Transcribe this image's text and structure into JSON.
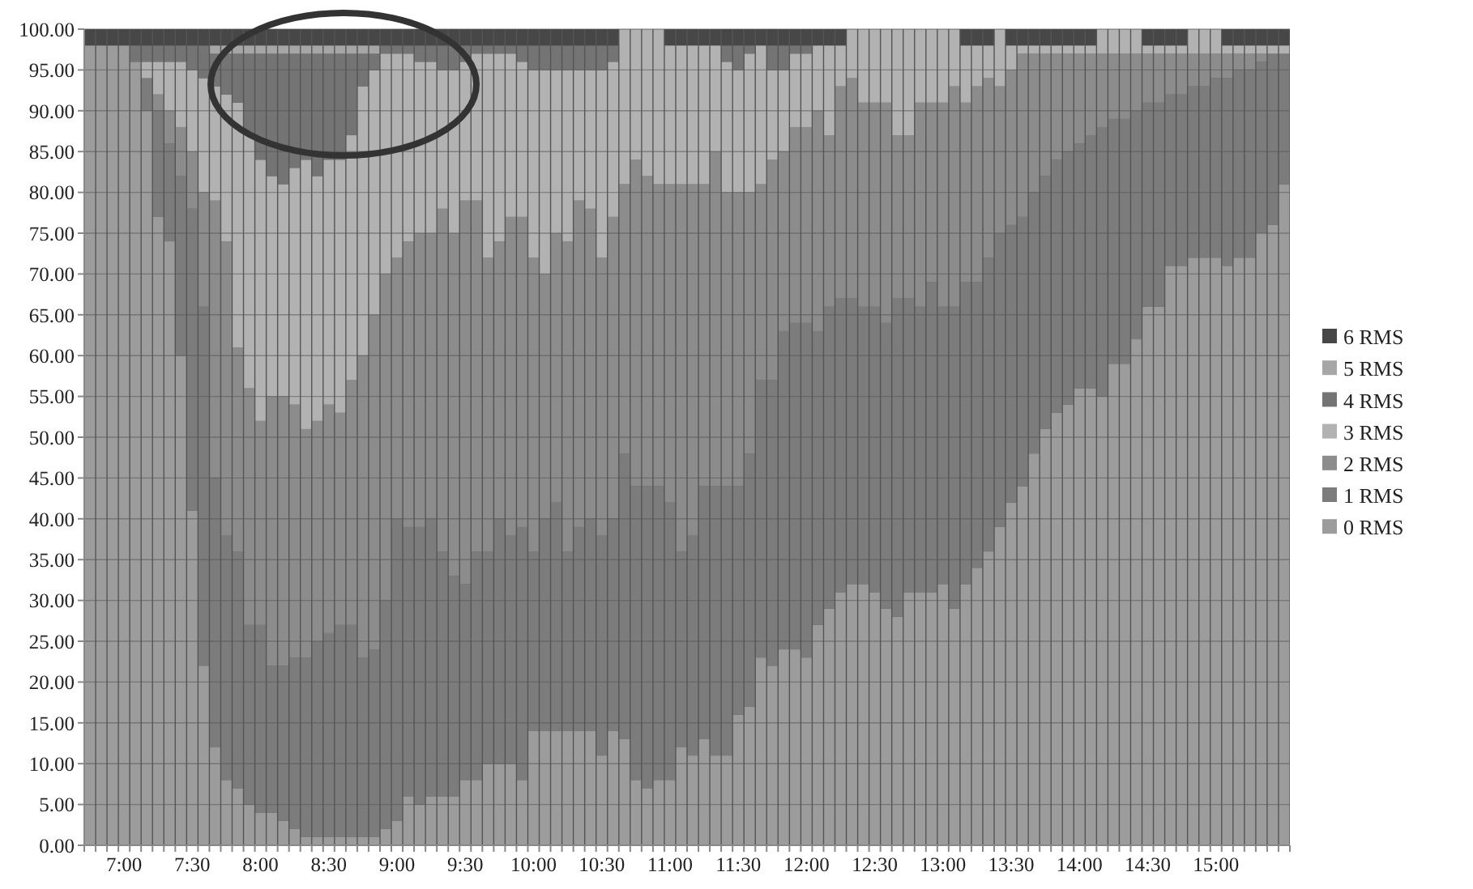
{
  "chart_data": {
    "type": "bar",
    "stacked": true,
    "grid": "y",
    "legend": "right",
    "categories": [
      null,
      null,
      null,
      "7:00",
      null,
      null,
      null,
      null,
      null,
      "7:30",
      null,
      null,
      null,
      null,
      null,
      "8:00",
      null,
      null,
      null,
      null,
      null,
      "8:30",
      null,
      null,
      null,
      null,
      null,
      "9:00",
      null,
      null,
      null,
      null,
      null,
      "9:30",
      null,
      null,
      null,
      null,
      null,
      "10:00",
      null,
      null,
      null,
      null,
      null,
      "10:30",
      null,
      null,
      null,
      null,
      null,
      "11:00",
      null,
      null,
      null,
      null,
      null,
      "11:30",
      null,
      null,
      null,
      null,
      null,
      "12:00",
      null,
      null,
      null,
      null,
      null,
      "12:30",
      null,
      null,
      null,
      null,
      null,
      "13:00",
      null,
      null,
      null,
      null,
      null,
      "13:30",
      null,
      null,
      null,
      null,
      null,
      "14:00",
      null,
      null,
      null,
      null,
      null,
      "14:30",
      null,
      null,
      null,
      null,
      null,
      "15:00",
      null,
      null,
      null,
      null,
      null,
      null
    ],
    "ylim": [
      0,
      100
    ],
    "yticks": [
      {
        "value": 0,
        "label": "0.00"
      },
      {
        "value": 5,
        "label": "5.00"
      },
      {
        "value": 10,
        "label": "10.00"
      },
      {
        "value": 15,
        "label": "15.00"
      },
      {
        "value": 20,
        "label": "20.00"
      },
      {
        "value": 25,
        "label": "25.00"
      },
      {
        "value": 30,
        "label": "30.00"
      },
      {
        "value": 35,
        "label": "35.00"
      },
      {
        "value": 40,
        "label": "40.00"
      },
      {
        "value": 45,
        "label": "45.00"
      },
      {
        "value": 50,
        "label": "50.00"
      },
      {
        "value": 55,
        "label": "55.00"
      },
      {
        "value": 60,
        "label": "60.00"
      },
      {
        "value": 65,
        "label": "65.00"
      },
      {
        "value": 70,
        "label": "70.00"
      },
      {
        "value": 75,
        "label": "75.00"
      },
      {
        "value": 80,
        "label": "80.00"
      },
      {
        "value": 85,
        "label": "85.00"
      },
      {
        "value": 90,
        "label": "90.00"
      },
      {
        "value": 95,
        "label": "95.00"
      },
      {
        "value": 100,
        "label": "100.00"
      }
    ],
    "series": [
      {
        "name": "0 RMS",
        "color": "#9c9c9c",
        "values": [
          98,
          98,
          98,
          98,
          96,
          90,
          77,
          74,
          60,
          41,
          22,
          12,
          8,
          7,
          5,
          4,
          4,
          3,
          2,
          1,
          1,
          1,
          1,
          1,
          1,
          1,
          2,
          3,
          6,
          5,
          6,
          6,
          6,
          8,
          8,
          10,
          10,
          10,
          8,
          14,
          14,
          14,
          14,
          14,
          14,
          11,
          14,
          13,
          8,
          7,
          8,
          8,
          12,
          11,
          13,
          11,
          11,
          16,
          17,
          23,
          22,
          24,
          24,
          23,
          27,
          29,
          31,
          32,
          32,
          31,
          29,
          28,
          31,
          31,
          31,
          32,
          29,
          32,
          34,
          36,
          39,
          42,
          44,
          48,
          51,
          53,
          54,
          56,
          56,
          55,
          59,
          59,
          62,
          66,
          66,
          71,
          71,
          72,
          72,
          72,
          71,
          72,
          72,
          75,
          76,
          81
        ]
      },
      {
        "name": "1 RMS",
        "color": "#7c7c7c",
        "values": [
          0,
          0,
          0,
          0,
          0,
          4,
          13,
          12,
          22,
          37,
          44,
          33,
          30,
          29,
          22,
          23,
          18,
          19,
          21,
          22,
          24,
          25,
          26,
          26,
          22,
          23,
          28,
          37,
          33,
          34,
          34,
          30,
          27,
          24,
          28,
          26,
          30,
          28,
          31,
          22,
          26,
          28,
          22,
          25,
          26,
          27,
          26,
          35,
          36,
          37,
          36,
          34,
          24,
          27,
          31,
          33,
          33,
          28,
          31,
          34,
          35,
          39,
          40,
          41,
          36,
          37,
          36,
          35,
          34,
          35,
          35,
          39,
          36,
          35,
          38,
          34,
          37,
          37,
          35,
          36,
          36,
          34,
          33,
          32,
          31,
          31,
          31,
          30,
          31,
          33,
          30,
          30,
          28,
          25,
          25,
          21,
          21,
          21,
          21,
          22,
          23,
          23,
          23,
          21,
          21,
          16
        ]
      },
      {
        "name": "2 RMS",
        "color": "#8c8c8c",
        "values": [
          0,
          0,
          0,
          0,
          0,
          0,
          2,
          4,
          6,
          7,
          14,
          34,
          36,
          25,
          29,
          25,
          33,
          33,
          31,
          28,
          27,
          28,
          26,
          30,
          37,
          41,
          40,
          32,
          35,
          36,
          35,
          42,
          42,
          47,
          43,
          36,
          34,
          39,
          38,
          36,
          30,
          33,
          38,
          40,
          38,
          34,
          37,
          33,
          40,
          38,
          37,
          39,
          45,
          43,
          37,
          41,
          36,
          36,
          32,
          24,
          27,
          22,
          24,
          24,
          27,
          21,
          26,
          27,
          25,
          25,
          27,
          20,
          20,
          25,
          22,
          25,
          27,
          22,
          24,
          22,
          18,
          19,
          20,
          17,
          15,
          13,
          12,
          11,
          10,
          9,
          8,
          8,
          7,
          6,
          6,
          5,
          5,
          4,
          4,
          3,
          3,
          2,
          2,
          1,
          0,
          0
        ]
      },
      {
        "name": "3 RMS",
        "color": "#b2b2b2",
        "values": [
          0,
          0,
          0,
          0,
          0,
          2,
          4,
          6,
          8,
          10,
          14,
          14,
          18,
          30,
          31,
          32,
          27,
          26,
          29,
          33,
          30,
          30,
          31,
          30,
          33,
          30,
          27,
          25,
          23,
          21,
          21,
          17,
          20,
          17,
          18,
          25,
          23,
          20,
          19,
          23,
          25,
          20,
          21,
          16,
          17,
          23,
          19,
          19,
          16,
          18,
          19,
          17,
          17,
          17,
          17,
          13,
          16,
          15,
          17,
          17,
          11,
          10,
          9,
          9,
          8,
          11,
          5,
          6,
          9,
          9,
          9,
          13,
          13,
          9,
          9,
          9,
          7,
          7,
          5,
          4,
          7,
          3,
          1,
          1,
          1,
          1,
          1,
          1,
          1,
          3,
          3,
          3,
          3,
          1,
          1,
          1,
          1,
          3,
          3,
          3,
          1,
          1,
          1,
          1,
          1,
          1
        ]
      },
      {
        "name": "4 RMS",
        "color": "#747474",
        "values": [
          0,
          0,
          0,
          0,
          2,
          2,
          2,
          2,
          2,
          3,
          4,
          4,
          5,
          6,
          10,
          13,
          15,
          16,
          14,
          13,
          15,
          13,
          13,
          10,
          4,
          2,
          1,
          1,
          1,
          2,
          2,
          3,
          3,
          2,
          1,
          1,
          1,
          1,
          2,
          3,
          3,
          3,
          3,
          3,
          3,
          3,
          2,
          0,
          0,
          0,
          0,
          0,
          0,
          0,
          0,
          0,
          2,
          3,
          1,
          0,
          3,
          3,
          1,
          1,
          0,
          0,
          0,
          0,
          0,
          0,
          0,
          0,
          0,
          0,
          0,
          0,
          0,
          0,
          0,
          0,
          0,
          0,
          0,
          0,
          0,
          0,
          0,
          0,
          0,
          0,
          0,
          0,
          0,
          0,
          0,
          0,
          0,
          0,
          0,
          0,
          0,
          0,
          0,
          0,
          0,
          0
        ]
      },
      {
        "name": "5 RMS",
        "color": "#a6a6a6",
        "values": [
          0,
          0,
          0,
          0,
          0,
          0,
          0,
          0,
          0,
          0,
          0,
          1,
          1,
          1,
          1,
          1,
          1,
          1,
          1,
          1,
          1,
          1,
          1,
          1,
          1,
          1,
          0,
          0,
          0,
          0,
          0,
          0,
          0,
          0,
          0,
          0,
          0,
          0,
          0,
          0,
          0,
          0,
          0,
          0,
          0,
          0,
          0,
          0,
          0,
          0,
          0,
          0,
          0,
          0,
          0,
          0,
          0,
          0,
          0,
          0,
          0,
          0,
          0,
          0,
          0,
          0,
          0,
          0,
          0,
          0,
          0,
          0,
          0,
          0,
          0,
          0,
          0,
          0,
          0,
          0,
          0,
          0,
          0,
          0,
          0,
          0,
          0,
          0,
          0,
          0,
          0,
          0,
          0,
          0,
          0,
          0,
          0,
          0,
          0,
          0,
          0,
          0,
          0,
          0,
          0,
          0
        ]
      },
      {
        "name": "6 RMS",
        "color": "#474747",
        "values": [
          2,
          2,
          2,
          2,
          2,
          2,
          2,
          2,
          2,
          2,
          2,
          2,
          2,
          2,
          2,
          2,
          2,
          2,
          2,
          2,
          2,
          2,
          2,
          2,
          2,
          2,
          2,
          2,
          2,
          2,
          2,
          2,
          2,
          2,
          2,
          2,
          2,
          2,
          2,
          2,
          2,
          2,
          2,
          2,
          2,
          2,
          2,
          0,
          0,
          0,
          0,
          2,
          2,
          2,
          2,
          2,
          2,
          2,
          2,
          2,
          2,
          2,
          2,
          2,
          2,
          2,
          2,
          0,
          0,
          0,
          0,
          0,
          0,
          0,
          0,
          0,
          0,
          2,
          2,
          2,
          0,
          2,
          2,
          2,
          2,
          2,
          2,
          2,
          2,
          0,
          0,
          0,
          0,
          2,
          2,
          2,
          2,
          0,
          0,
          0,
          2,
          2,
          2,
          2,
          2,
          2
        ]
      }
    ]
  }
}
